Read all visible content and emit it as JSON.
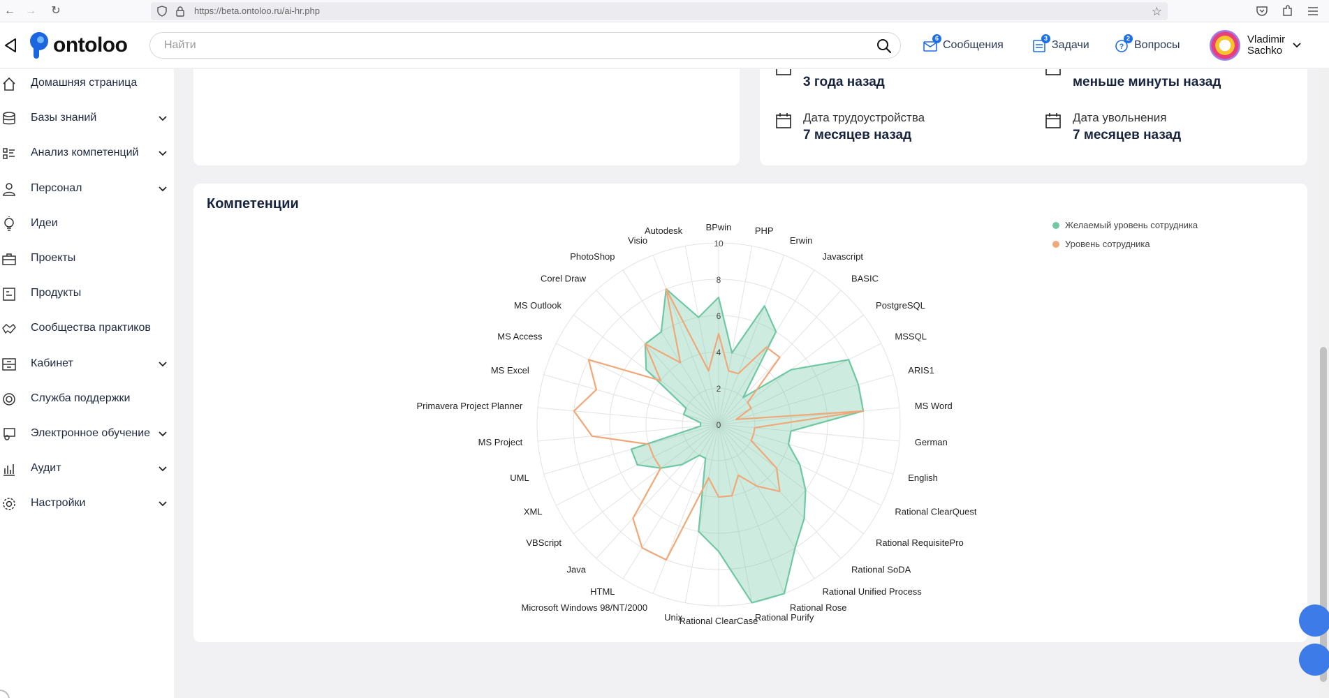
{
  "browser": {
    "url": "https://beta.ontoloo.ru/ai-hr.php"
  },
  "header": {
    "logo_text": "ontoloo",
    "search_placeholder": "Найти",
    "messages": {
      "label": "Сообщения",
      "badge": "6"
    },
    "tasks": {
      "label": "Задачи",
      "badge": "3"
    },
    "questions": {
      "label": "Вопросы",
      "badge": "2"
    },
    "user": {
      "first_name": "Vladimir",
      "last_name": "Sachko"
    }
  },
  "sidebar": {
    "items": [
      {
        "label": "Домашняя страница",
        "icon": "home-icon",
        "expandable": false
      },
      {
        "label": "Базы знаний",
        "icon": "database-icon",
        "expandable": true
      },
      {
        "label": "Анализ компетенций",
        "icon": "analysis-icon",
        "expandable": true
      },
      {
        "label": "Персонал",
        "icon": "person-icon",
        "expandable": true
      },
      {
        "label": "Идеи",
        "icon": "lightbulb-icon",
        "expandable": false
      },
      {
        "label": "Проекты",
        "icon": "briefcase-icon",
        "expandable": false
      },
      {
        "label": "Продукты",
        "icon": "product-icon",
        "expandable": false
      },
      {
        "label": "Сообщества практиков",
        "icon": "handshake-icon",
        "expandable": false
      },
      {
        "label": "Кабинет",
        "icon": "cabinet-icon",
        "expandable": true
      },
      {
        "label": "Служба поддержки",
        "icon": "support-icon",
        "expandable": false
      },
      {
        "label": "Электронное обучение",
        "icon": "elearning-icon",
        "expandable": true
      },
      {
        "label": "Аудит",
        "icon": "audit-icon",
        "expandable": true
      },
      {
        "label": "Настройки",
        "icon": "settings-icon",
        "expandable": true
      }
    ]
  },
  "dates": {
    "top_left_value": "3 года назад",
    "top_right_value": "меньше минуты назад",
    "hire": {
      "label": "Дата трудоустройства",
      "value": "7 месяцев назад"
    },
    "dismissal": {
      "label": "Дата увольнения",
      "value": "7 месяцев назад"
    }
  },
  "competencies": {
    "title": "Компетенции"
  },
  "chart_data": {
    "type": "radar",
    "title": "Компетенции",
    "range": [
      0,
      10
    ],
    "ticks": [
      0,
      2,
      4,
      6,
      8,
      10
    ],
    "legend_position": "top-right",
    "categories": [
      "BPwin",
      "PHP",
      "Erwin",
      "Javascript",
      "BASIC",
      "PostgreSQL",
      "MSSQL",
      "ARIS1",
      "MS Word",
      "German",
      "English",
      "Rational ClearQuest",
      "Rational RequisitePro",
      "Rational SoDA",
      "Rational Unified Process",
      "Rational Rose",
      "Rational Purify",
      "Rational ClearCase",
      "Unix",
      "Microsoft Windows 98/NT/2000",
      "HTML",
      "Java",
      "VBScript",
      "XML",
      "UML",
      "MS Project",
      "Primavera Project Planner",
      "MS Excel",
      "MS Access",
      "MS Outlook",
      "Corel Draw",
      "PhotoShop",
      "Visio",
      "Autodesk"
    ],
    "series": [
      {
        "name": "Желаемый уровень сотрудника",
        "color": "#6fc8a3",
        "values": [
          7,
          4,
          7,
          6,
          2,
          5,
          8,
          8,
          8,
          4,
          4,
          5,
          6,
          7,
          8,
          10,
          10,
          7,
          6,
          2,
          2,
          3,
          4,
          5,
          5,
          1,
          1,
          2,
          2,
          5,
          6,
          6,
          8,
          6
        ]
      },
      {
        "name": "Уровень сотрудника",
        "color": "#f0a878",
        "values": [
          5,
          3,
          3,
          5,
          5,
          2,
          2,
          1,
          8,
          2,
          2,
          2,
          4,
          5,
          4,
          3,
          4,
          4,
          3,
          8,
          8,
          7,
          4,
          4,
          4,
          7,
          8,
          7,
          8,
          4,
          6,
          4,
          8,
          3
        ]
      }
    ]
  }
}
